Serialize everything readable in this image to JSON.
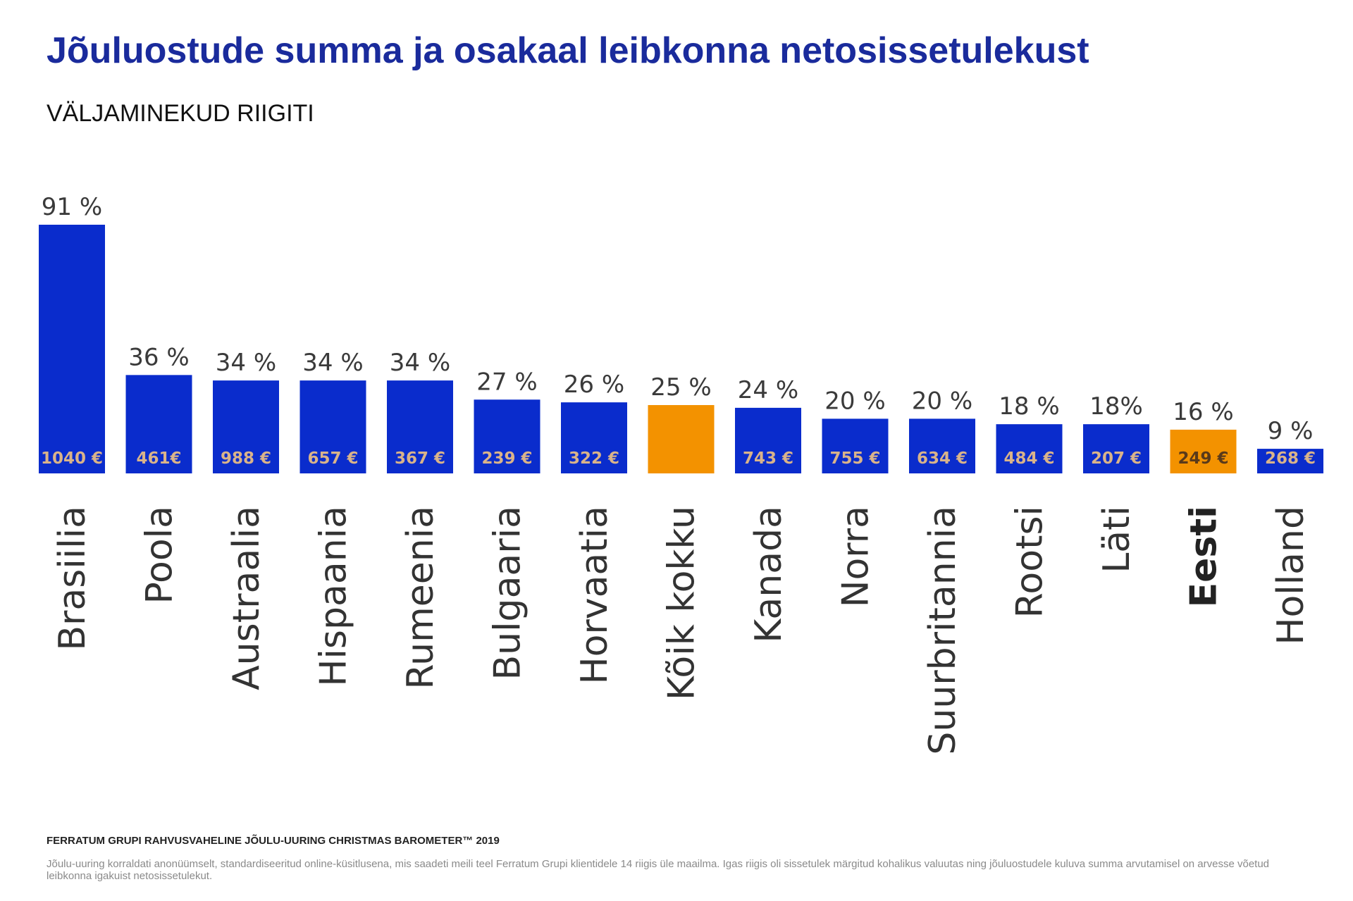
{
  "header": {
    "title": "Jõuluostude summa ja osakaal leibkonna netosissetulekust",
    "subtitle": "VÄLJAMINEKUD RIIGITI"
  },
  "footer": {
    "title": "FERRATUM GRUPI RAHVUSVAHELINE JÕULU-UURING CHRISTMAS BAROMETER™ 2019",
    "note": "Jõulu-uuring korraldati anonüümselt, standardiseeritud online-küsitlusena, mis saadeti meili teel Ferratum Grupi klientidele 14 riigis üle maailma. Igas riigis oli sissetulek märgitud kohalikus valuutas ning jõuluostudele kuluva summa arvutamisel on arvesse võetud leibkonna igakuist netosissetulekut."
  },
  "colors": {
    "bar_default": "#0a2ccc",
    "bar_highlight": "#f39200",
    "amount_on_blue": "#d9b38a",
    "amount_on_orange": "#5a3a1a",
    "title": "#1a2b9c"
  },
  "chart_data": {
    "type": "bar",
    "title": "Jõuluostude summa ja osakaal leibkonna netosissetulekust",
    "subtitle": "VÄLJAMINEKUD RIIGITI",
    "xlabel": "",
    "ylabel": "",
    "ylim": [
      0,
      91
    ],
    "grid": false,
    "legend": "none",
    "categories": [
      "Brasiilia",
      "Poola",
      "Austraalia",
      "Hispaania",
      "Rumeenia",
      "Bulgaaria",
      "Horvaatia",
      "Kõik kokku",
      "Kanada",
      "Norra",
      "Suurbritannia",
      "Rootsi",
      "Läti",
      "Eesti",
      "Holland"
    ],
    "series": [
      {
        "name": "Osakaal leibkonna netosissetulekust (%)",
        "values": [
          91,
          36,
          34,
          34,
          34,
          27,
          26,
          25,
          24,
          20,
          20,
          18,
          18,
          16,
          9
        ],
        "labels": [
          "91 %",
          "36 %",
          "34 %",
          "34 %",
          "34 %",
          "27 %",
          "26 %",
          "25 %",
          "24 %",
          "20 %",
          "20 %",
          "18 %",
          "18%",
          "16 %",
          "9 %"
        ]
      },
      {
        "name": "Jõuluostude summa (€)",
        "values": [
          1040,
          461,
          988,
          657,
          367,
          239,
          322,
          null,
          743,
          755,
          634,
          484,
          207,
          249,
          268
        ],
        "labels": [
          "1040 €",
          "461€",
          "988 €",
          "657 €",
          "367 €",
          "239 €",
          "322 €",
          "",
          "743 €",
          "755 €",
          "634 €",
          "484 €",
          "207 €",
          "249 €",
          "268 €"
        ]
      }
    ],
    "highlighted": [
      "Kõik kokku",
      "Eesti"
    ],
    "bold_categories": [
      "Eesti"
    ]
  }
}
